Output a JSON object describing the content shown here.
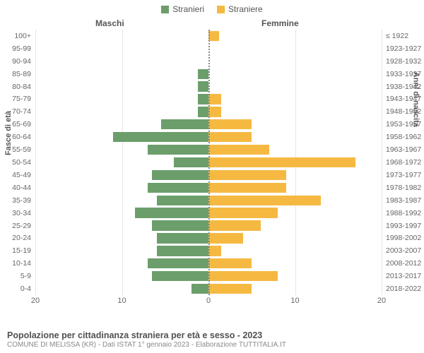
{
  "legend": {
    "male_label": "Stranieri",
    "female_label": "Straniere",
    "male_color": "#6b9e6b",
    "female_color": "#f5b942"
  },
  "headers": {
    "male": "Maschi",
    "female": "Femmine"
  },
  "axes": {
    "left_label": "Fasce di età",
    "right_label": "Anni di nascita",
    "x_ticks": [
      20,
      10,
      0,
      10,
      20
    ],
    "x_max": 20
  },
  "chart": {
    "type": "population-pyramid",
    "background_color": "#ffffff",
    "grid_color": "#e5e5e5",
    "center_line_color": "#888888",
    "tick_font_size": 10.5,
    "label_font_size": 11,
    "rows": [
      {
        "age": "100+",
        "birth": "≤ 1922",
        "m": 0,
        "f": 1.2
      },
      {
        "age": "95-99",
        "birth": "1923-1927",
        "m": 0,
        "f": 0
      },
      {
        "age": "90-94",
        "birth": "1928-1932",
        "m": 0,
        "f": 0
      },
      {
        "age": "85-89",
        "birth": "1933-1937",
        "m": 1.2,
        "f": 0
      },
      {
        "age": "80-84",
        "birth": "1938-1942",
        "m": 1.2,
        "f": 0
      },
      {
        "age": "75-79",
        "birth": "1943-1947",
        "m": 1.2,
        "f": 1.5
      },
      {
        "age": "70-74",
        "birth": "1948-1952",
        "m": 1.2,
        "f": 1.5
      },
      {
        "age": "65-69",
        "birth": "1953-1957",
        "m": 5.5,
        "f": 5
      },
      {
        "age": "60-64",
        "birth": "1958-1962",
        "m": 11,
        "f": 5
      },
      {
        "age": "55-59",
        "birth": "1963-1967",
        "m": 7,
        "f": 7
      },
      {
        "age": "50-54",
        "birth": "1968-1972",
        "m": 4,
        "f": 17
      },
      {
        "age": "45-49",
        "birth": "1973-1977",
        "m": 6.5,
        "f": 9
      },
      {
        "age": "40-44",
        "birth": "1978-1982",
        "m": 7,
        "f": 9
      },
      {
        "age": "35-39",
        "birth": "1983-1987",
        "m": 6,
        "f": 13
      },
      {
        "age": "30-34",
        "birth": "1988-1992",
        "m": 8.5,
        "f": 8
      },
      {
        "age": "25-29",
        "birth": "1993-1997",
        "m": 6.5,
        "f": 6
      },
      {
        "age": "20-24",
        "birth": "1998-2002",
        "m": 6,
        "f": 4
      },
      {
        "age": "15-19",
        "birth": "2003-2007",
        "m": 6,
        "f": 1.5
      },
      {
        "age": "10-14",
        "birth": "2008-2012",
        "m": 7,
        "f": 5
      },
      {
        "age": "5-9",
        "birth": "2013-2017",
        "m": 6.5,
        "f": 8
      },
      {
        "age": "0-4",
        "birth": "2018-2022",
        "m": 2,
        "f": 5
      }
    ]
  },
  "footer": {
    "title": "Popolazione per cittadinanza straniera per età e sesso - 2023",
    "subtitle": "COMUNE DI MELISSA (KR) - Dati ISTAT 1° gennaio 2023 - Elaborazione TUTTITALIA.IT"
  }
}
